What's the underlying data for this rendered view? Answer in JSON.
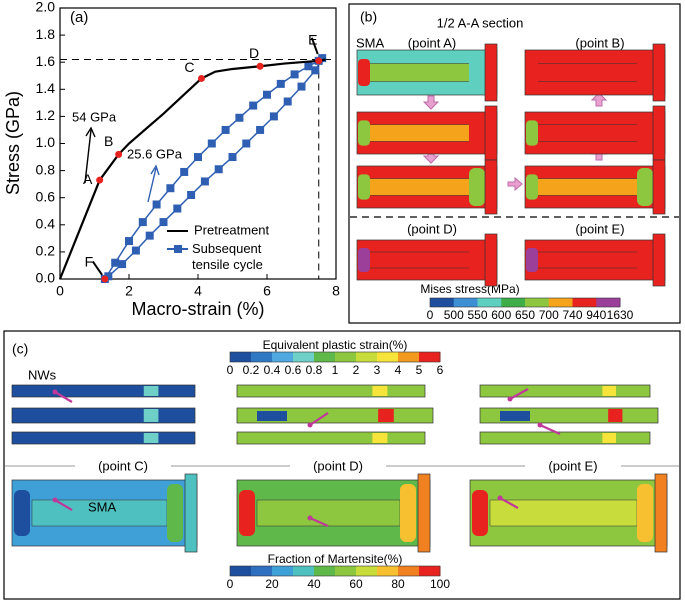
{
  "chart_data": {
    "type": "line",
    "panel_label": "(a)",
    "x_label": "Macro-strain (%)",
    "y_label": "Stress (GPa)",
    "xlim": [
      0,
      8
    ],
    "ylim": [
      0,
      2
    ],
    "xticks": [
      0,
      2,
      4,
      6,
      8
    ],
    "yticks": [
      {
        "value": 0,
        "label": "0.0"
      },
      0.2,
      0.4,
      0.6,
      0.8,
      {
        "value": 1,
        "label": "1.0"
      },
      1.2,
      1.4,
      1.6,
      1.8,
      {
        "value": 2,
        "label": "2.0"
      }
    ],
    "series": [
      {
        "name": "Pretreatment",
        "color": "#000000",
        "marker": "none",
        "x": [
          0,
          1.15,
          1.7,
          2.0,
          3.0,
          4.1,
          4.5,
          5.0,
          5.8,
          6.5,
          7.5,
          7.7
        ],
        "values": [
          0,
          0.73,
          0.92,
          1.0,
          1.22,
          1.48,
          1.53,
          1.55,
          1.57,
          1.59,
          1.61,
          1.62
        ]
      },
      {
        "name": "Subsequent tensile cycle",
        "color": "#2f5fb3",
        "marker": "square",
        "x": [
          1.3,
          1.6,
          2.0,
          2.4,
          2.8,
          3.2,
          3.6,
          4.0,
          4.4,
          4.8,
          5.2,
          5.6,
          6.0,
          6.4,
          6.8,
          7.2,
          7.5,
          7.6,
          7.4,
          7.0,
          6.6,
          6.2,
          5.8,
          5.4,
          5.0,
          4.6,
          4.2,
          3.8,
          3.4,
          3.0,
          2.6,
          2.2,
          1.8,
          1.4
        ],
        "values": [
          0,
          0.12,
          0.28,
          0.42,
          0.55,
          0.67,
          0.79,
          0.9,
          1.0,
          1.1,
          1.19,
          1.28,
          1.36,
          1.44,
          1.51,
          1.57,
          1.61,
          1.63,
          1.54,
          1.42,
          1.31,
          1.2,
          1.1,
          1.0,
          0.9,
          0.81,
          0.72,
          0.62,
          0.52,
          0.42,
          0.32,
          0.21,
          0.11,
          0.02
        ]
      }
    ],
    "points": [
      {
        "label": "A",
        "x": 1.15,
        "y": 0.73
      },
      {
        "label": "B",
        "x": 1.7,
        "y": 0.92
      },
      {
        "label": "C",
        "x": 4.1,
        "y": 1.48
      },
      {
        "label": "D",
        "x": 5.8,
        "y": 1.57
      },
      {
        "label": "E",
        "x": 7.5,
        "y": 1.61
      },
      {
        "label": "F",
        "x": 1.3,
        "y": 0
      }
    ],
    "point_color": "#e8231f",
    "guides": {
      "x": 7.5,
      "y": 1.62
    },
    "slope_labels": [
      {
        "text": "54 GPa",
        "color": "#000000"
      },
      {
        "text": "25.6 GPa",
        "color": "#2f5fb3"
      }
    ]
  },
  "panel_b": {
    "label": "(b)",
    "section_title": "1/2 A-A section",
    "sma_label": "SMA",
    "point_labels": [
      "(point A)",
      "(point B)",
      "(point D)",
      "(point E)"
    ],
    "colorbar": {
      "title": "Mises stress(MPa)",
      "ticks": [
        0,
        500,
        550,
        600,
        650,
        700,
        740,
        940,
        1630
      ],
      "colors": [
        "#1d4f9e",
        "#3d8fd4",
        "#5fcfc0",
        "#3fae49",
        "#8dc63f",
        "#f5a31a",
        "#e8231f",
        "#9b3f9b"
      ]
    }
  },
  "panel_c": {
    "label": "(c)",
    "nws_label": "NWs",
    "sma_label": "SMA",
    "point_labels": [
      "(point C)",
      "(point D)",
      "(point E)"
    ],
    "strain_colorbar": {
      "title": "Equivalent plastic strain(%)",
      "ticks": [
        0,
        0.2,
        0.4,
        0.6,
        0.8,
        1,
        2,
        3,
        4,
        5,
        6
      ],
      "colors": [
        "#1d4f9e",
        "#2f78c4",
        "#4fa8e0",
        "#6fd0c8",
        "#5fb84a",
        "#8dc63f",
        "#c8dc3c",
        "#f7e43a",
        "#f29a20",
        "#e8231f"
      ]
    },
    "martensite_colorbar": {
      "title": "Fraction of Martensite(%)",
      "ticks": [
        0,
        20,
        40,
        60,
        80,
        100
      ],
      "colors": [
        "#1d4f9e",
        "#2f6fc0",
        "#3fa0d8",
        "#4fc0c0",
        "#5fb84a",
        "#8dc63f",
        "#c8dc3c",
        "#f7c030",
        "#f08020",
        "#e8231f"
      ]
    }
  }
}
